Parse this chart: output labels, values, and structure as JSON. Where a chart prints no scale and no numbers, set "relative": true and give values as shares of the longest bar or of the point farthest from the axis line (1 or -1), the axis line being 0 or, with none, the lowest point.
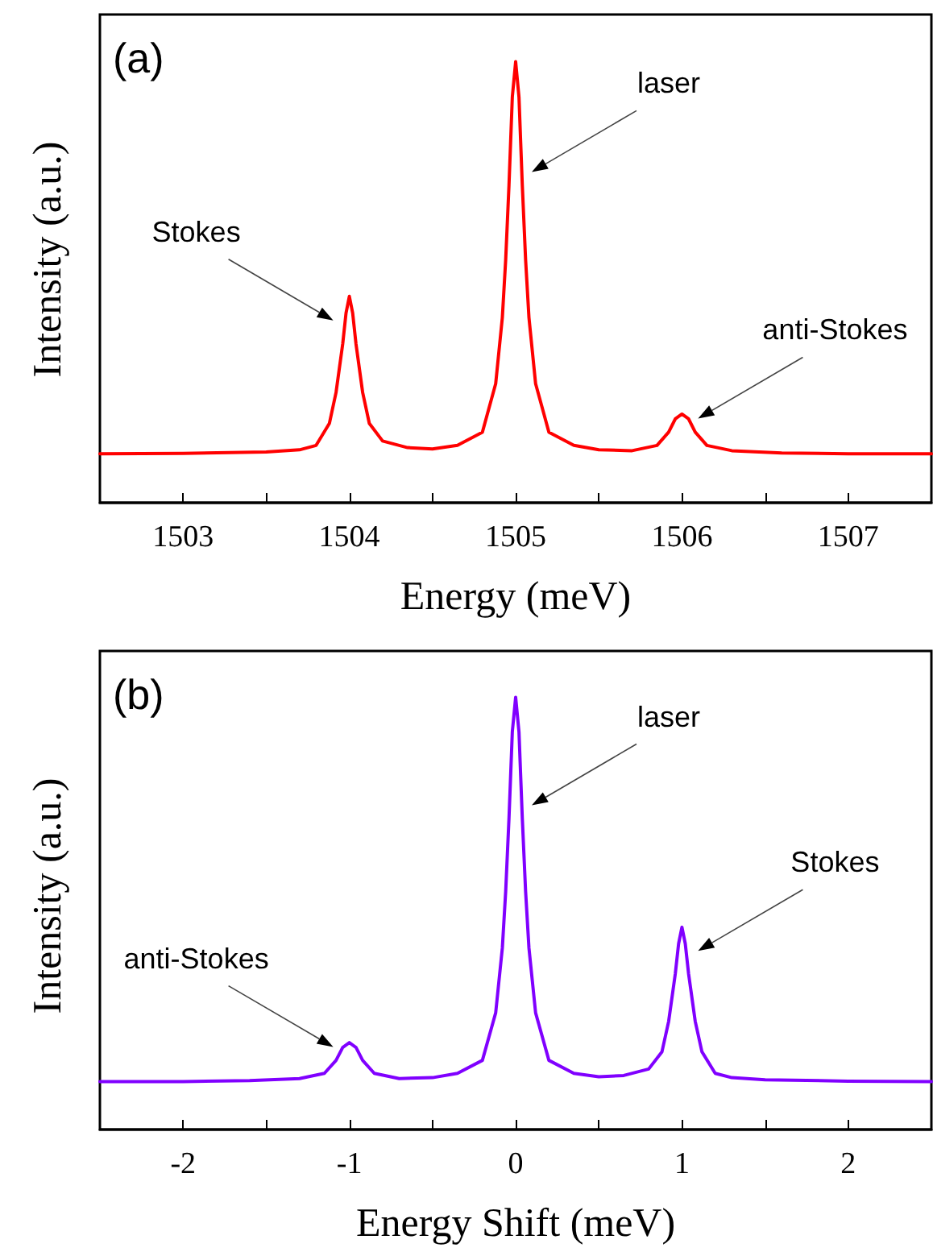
{
  "chart_data": [
    {
      "type": "line",
      "relative": true,
      "xlabel": "Energy (meV)",
      "ylabel": "Intensity (a.u.)",
      "xlim": [
        1502.5,
        1507.5
      ],
      "xticks": [
        1503,
        {
          "value": 1503.5,
          "label": null
        },
        1504,
        {
          "value": 1504.5,
          "label": null
        },
        1505,
        {
          "value": 1505.5,
          "label": null
        },
        1506,
        {
          "value": 1506.5,
          "label": null
        },
        1507
      ],
      "series": [
        {
          "color": "#ff0000",
          "x": [
            1502.5,
            1503,
            1503.5,
            1503.7,
            1503.8,
            1503.88,
            1503.92,
            1503.96,
            1503.98,
            1504,
            1504.02,
            1504.04,
            1504.08,
            1504.12,
            1504.2,
            1504.35,
            1504.5,
            1504.65,
            1504.8,
            1504.88,
            1504.92,
            1504.94,
            1504.96,
            1504.98,
            1505,
            1505.02,
            1505.04,
            1505.06,
            1505.08,
            1505.12,
            1505.2,
            1505.35,
            1505.5,
            1505.7,
            1505.85,
            1505.92,
            1505.96,
            1506,
            1506.04,
            1506.08,
            1506.15,
            1506.3,
            1506.6,
            1507,
            1507.5
          ],
          "values": [
            0.111,
            0.112,
            0.115,
            0.12,
            0.13,
            0.18,
            0.25,
            0.36,
            0.43,
            0.468,
            0.43,
            0.36,
            0.25,
            0.18,
            0.14,
            0.125,
            0.122,
            0.13,
            0.16,
            0.27,
            0.42,
            0.55,
            0.72,
            0.92,
            1,
            0.92,
            0.72,
            0.55,
            0.42,
            0.27,
            0.16,
            0.13,
            0.12,
            0.118,
            0.13,
            0.16,
            0.19,
            0.201,
            0.19,
            0.16,
            0.13,
            0.118,
            0.113,
            0.111,
            0.111
          ]
        }
      ],
      "annotations": [
        "(a)",
        "Stokes",
        "laser",
        "anti-Stokes"
      ]
    },
    {
      "type": "line",
      "relative": true,
      "xlabel": "Energy Shift (meV)",
      "ylabel": "Intensity (a.u.)",
      "xlim": [
        -2.5,
        2.5
      ],
      "xticks": [
        -2,
        {
          "value": -1.5,
          "label": null
        },
        -1,
        {
          "value": -0.5,
          "label": null
        },
        0,
        {
          "value": 0.5,
          "label": null
        },
        1,
        {
          "value": 1.5,
          "label": null
        },
        2
      ],
      "series": [
        {
          "color": "#8000ff",
          "x": [
            -2.5,
            -2,
            -1.6,
            -1.3,
            -1.15,
            -1.08,
            -1.04,
            -1,
            -0.96,
            -0.92,
            -0.85,
            -0.7,
            -0.5,
            -0.35,
            -0.2,
            -0.12,
            -0.08,
            -0.06,
            -0.04,
            -0.02,
            0,
            0.02,
            0.04,
            0.06,
            0.08,
            0.12,
            0.2,
            0.35,
            0.5,
            0.65,
            0.8,
            0.88,
            0.92,
            0.96,
            0.98,
            1,
            1.02,
            1.04,
            1.08,
            1.12,
            1.2,
            1.3,
            1.5,
            2,
            2.5
          ],
          "values": [
            0.111,
            0.111,
            0.113,
            0.118,
            0.13,
            0.16,
            0.19,
            0.201,
            0.19,
            0.16,
            0.13,
            0.118,
            0.12,
            0.13,
            0.16,
            0.27,
            0.42,
            0.55,
            0.72,
            0.92,
            1,
            0.92,
            0.72,
            0.55,
            0.42,
            0.27,
            0.16,
            0.13,
            0.122,
            0.125,
            0.14,
            0.18,
            0.25,
            0.36,
            0.43,
            0.468,
            0.43,
            0.36,
            0.25,
            0.18,
            0.13,
            0.12,
            0.115,
            0.112,
            0.111
          ]
        }
      ],
      "annotations": [
        "(b)",
        "anti-Stokes",
        "laser",
        "Stokes"
      ]
    }
  ]
}
